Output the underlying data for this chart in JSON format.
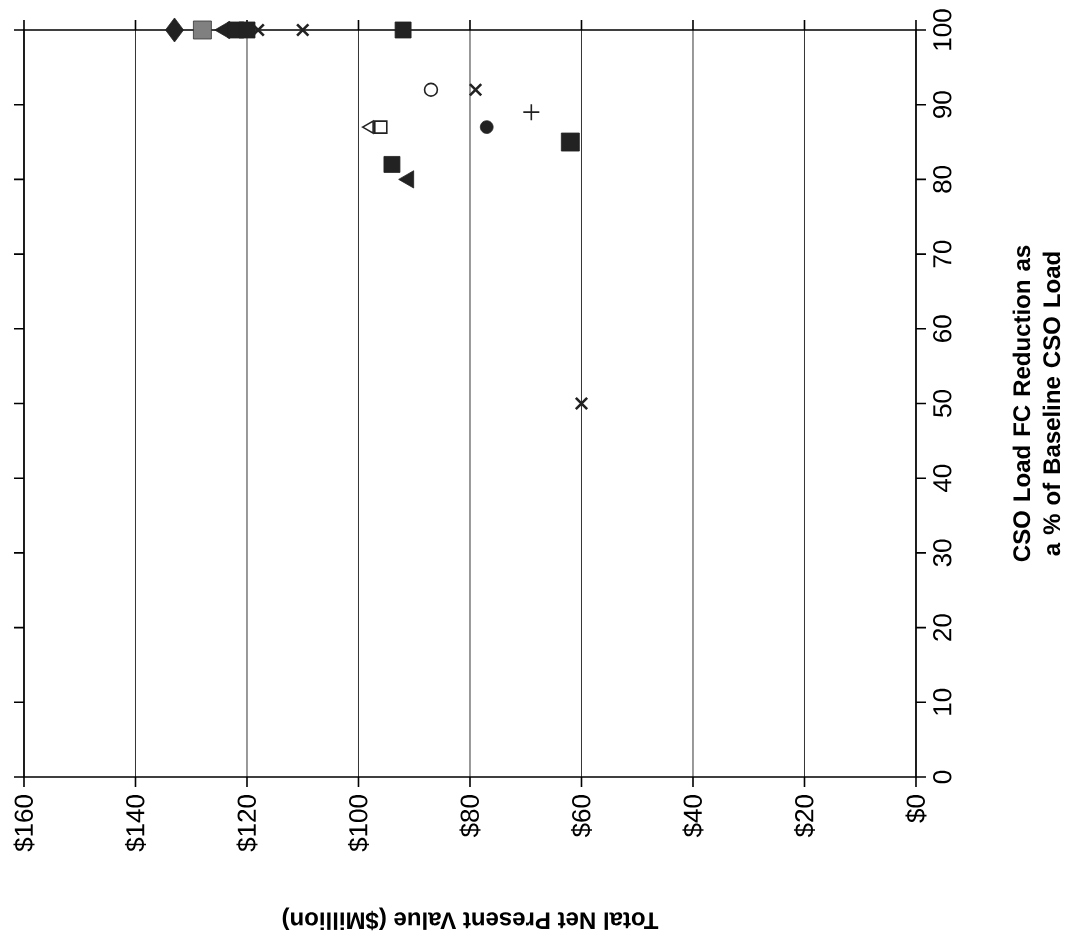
{
  "chart_data": {
    "type": "scatter",
    "xlabel": "Total Net Present Value ($Million)",
    "ylabel": "CSO Load FC Reduction as a % of Baseline CSO Load",
    "xlim": [
      160,
      0
    ],
    "xticks": [
      {
        "value": 160,
        "label": "$160"
      },
      {
        "value": 140,
        "label": "$140"
      },
      {
        "value": 120,
        "label": "$120"
      },
      {
        "value": 100,
        "label": "$100"
      },
      {
        "value": 80,
        "label": "$80"
      },
      {
        "value": 60,
        "label": "$60"
      },
      {
        "value": 40,
        "label": "$40"
      },
      {
        "value": 20,
        "label": "$20"
      },
      {
        "value": 0,
        "label": "$0"
      }
    ],
    "ylim": [
      0,
      100
    ],
    "yticks": [
      0,
      10,
      20,
      30,
      40,
      50,
      60,
      70,
      80,
      90,
      100
    ],
    "grid": "x",
    "series": [
      {
        "color": "#222222",
        "marker": "diamond",
        "x": [
          133
        ],
        "values": [
          100
        ]
      },
      {
        "color": "#333333",
        "marker": "square_cross",
        "x": [
          128
        ],
        "values": [
          100
        ]
      },
      {
        "color": "#222222",
        "marker": "triangle",
        "x": [
          124,
          91
        ],
        "values": [
          100,
          80
        ]
      },
      {
        "color": "#222222",
        "marker": "square",
        "x": [
          122,
          92
        ],
        "values": [
          100,
          100
        ]
      },
      {
        "color": "#222222",
        "marker": "square",
        "x": [
          120,
          94
        ],
        "values": [
          100,
          82
        ]
      },
      {
        "color": "#222222",
        "marker": "cross",
        "x": [
          118,
          79
        ],
        "values": [
          100,
          92
        ]
      },
      {
        "color": "#222222",
        "marker": "cross",
        "x": [
          110,
          60
        ],
        "values": [
          100,
          50
        ]
      },
      {
        "color": "#222222",
        "marker": "circle_open",
        "x": [
          87
        ],
        "values": [
          92
        ]
      },
      {
        "color": "#222222",
        "marker": "circle",
        "x": [
          77
        ],
        "values": [
          87
        ]
      },
      {
        "color": "#222222",
        "marker": "plus",
        "x": [
          69
        ],
        "values": [
          89
        ]
      },
      {
        "color": "#222222",
        "marker": "square_grid",
        "x": [
          62
        ],
        "values": [
          85
        ]
      },
      {
        "color": "#222222",
        "marker": "triangle_open",
        "x": [
          98
        ],
        "values": [
          87
        ]
      },
      {
        "color": "#222222",
        "marker": "square_open",
        "x": [
          96
        ],
        "values": [
          87
        ]
      }
    ]
  }
}
